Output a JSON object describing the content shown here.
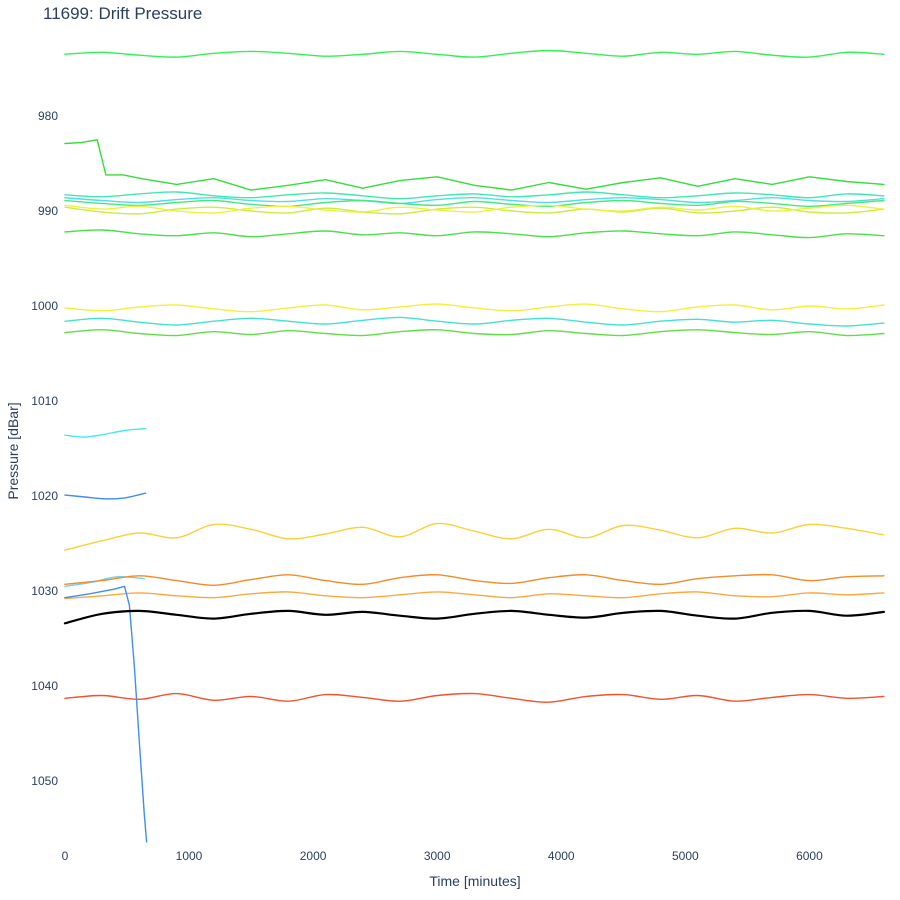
{
  "header": {
    "title": "11699: Drift Pressure"
  },
  "chart_data": {
    "type": "line",
    "title": "11699: Drift Pressure",
    "xlabel": "Time [minutes]",
    "ylabel": "Pressure [dBar]",
    "x_ticks": [
      0,
      1000,
      2000,
      3000,
      4000,
      5000,
      6000
    ],
    "y_ticks": [
      980,
      990,
      1000,
      1010,
      1020,
      1030,
      1040,
      1050
    ],
    "xlim": [
      -80,
      6730
    ],
    "ylim": [
      972,
      1058
    ],
    "y_axis_inverted": true,
    "grid": false,
    "legend_position": "none",
    "plot_bgcolor": "#ffffff",
    "text_color": "#2a3f5f",
    "default_x": [
      0,
      300,
      600,
      900,
      1200,
      1500,
      1800,
      2100,
      2400,
      2700,
      3000,
      3300,
      3600,
      3900,
      4200,
      4500,
      4800,
      5100,
      5400,
      5700,
      6000,
      6300,
      6600
    ],
    "series": [
      {
        "name": "series-green-973",
        "color": "#33f055",
        "width": 1.4,
        "smooth": true,
        "y": [
          973.5,
          973.3,
          973.6,
          973.8,
          973.4,
          973.2,
          973.4,
          973.7,
          973.5,
          973.2,
          973.5,
          973.8,
          973.4,
          973.1,
          973.4,
          973.7,
          973.3,
          973.5,
          973.2,
          973.6,
          973.8,
          973.3,
          973.5
        ]
      },
      {
        "name": "series-green-jump-983-987",
        "color": "#34df3b",
        "width": 1.4,
        "smooth": false,
        "x": [
          0,
          130,
          260,
          330,
          470,
          620,
          900,
          1200,
          1500,
          1800,
          2100,
          2400,
          2700,
          3000,
          3300,
          3600,
          3900,
          4200,
          4500,
          4800,
          5100,
          5400,
          5700,
          6000,
          6300,
          6600
        ],
        "y": [
          982.9,
          982.8,
          982.5,
          986.2,
          986.2,
          986.6,
          987.2,
          986.6,
          987.8,
          987.3,
          986.7,
          987.6,
          986.8,
          986.4,
          987.3,
          987.8,
          987.0,
          987.7,
          987.0,
          986.5,
          987.4,
          986.6,
          987.2,
          986.4,
          986.9,
          987.2
        ]
      },
      {
        "name": "series-teal-988",
        "color": "#3fe8b0",
        "width": 1.4,
        "smooth": true,
        "y": [
          988.3,
          988.5,
          988.2,
          988.0,
          988.4,
          988.6,
          988.3,
          988.1,
          988.4,
          988.7,
          988.4,
          988.2,
          988.5,
          988.3,
          988.0,
          988.3,
          988.6,
          988.4,
          988.1,
          988.3,
          988.6,
          988.2,
          988.4
        ]
      },
      {
        "name": "series-cyan-989",
        "color": "#52dde6",
        "width": 1.4,
        "smooth": true,
        "y": [
          988.6,
          988.9,
          989.1,
          988.8,
          988.6,
          988.9,
          989.0,
          988.7,
          988.9,
          989.2,
          988.8,
          988.6,
          988.9,
          989.1,
          988.8,
          988.6,
          988.8,
          989.1,
          988.9,
          988.6,
          988.9,
          989.0,
          988.7
        ]
      },
      {
        "name": "series-springgreen-989",
        "color": "#47e87e",
        "width": 1.4,
        "smooth": true,
        "y": [
          988.9,
          989.2,
          989.4,
          989.1,
          988.9,
          989.3,
          989.5,
          989.1,
          988.9,
          989.2,
          989.4,
          989.0,
          989.3,
          989.5,
          989.1,
          988.9,
          989.2,
          989.4,
          989.0,
          989.2,
          989.5,
          989.2,
          988.9
        ]
      },
      {
        "name": "series-yellowgreen-990",
        "color": "#c8ee3f",
        "width": 1.4,
        "smooth": true,
        "y": [
          989.6,
          990.1,
          990.3,
          989.8,
          989.6,
          990.0,
          990.2,
          989.7,
          990.1,
          990.3,
          989.8,
          989.6,
          990.0,
          990.2,
          989.8,
          990.1,
          989.7,
          990.2,
          990.0,
          989.6,
          990.1,
          990.2,
          989.8
        ]
      },
      {
        "name": "series-yellow-990",
        "color": "#eff13b",
        "width": 1.4,
        "smooth": true,
        "y": [
          989.4,
          989.8,
          989.5,
          990.0,
          990.2,
          989.7,
          989.5,
          989.9,
          990.1,
          989.6,
          989.9,
          990.1,
          989.6,
          989.4,
          989.8,
          990.0,
          989.6,
          989.9,
          989.5,
          990.0,
          989.7,
          989.4,
          989.8
        ]
      },
      {
        "name": "series-green-992",
        "color": "#49e149",
        "width": 1.4,
        "smooth": true,
        "y": [
          992.2,
          992.0,
          992.4,
          992.6,
          992.3,
          992.7,
          992.4,
          992.1,
          992.5,
          992.3,
          992.6,
          992.2,
          992.4,
          992.7,
          992.3,
          992.1,
          992.4,
          992.6,
          992.2,
          992.5,
          992.8,
          992.4,
          992.6
        ]
      },
      {
        "name": "series-yellow-1000",
        "color": "#f6ef39",
        "width": 1.4,
        "smooth": true,
        "y": [
          1000.2,
          1000.5,
          1000.1,
          999.9,
          1000.3,
          1000.6,
          1000.2,
          999.9,
          1000.4,
          1000.1,
          999.8,
          1000.2,
          1000.5,
          1000.1,
          999.8,
          1000.3,
          1000.6,
          1000.1,
          999.9,
          1000.4,
          1000.0,
          1000.3,
          999.9
        ]
      },
      {
        "name": "series-turquoise-1001",
        "color": "#41e3cd",
        "width": 1.4,
        "smooth": true,
        "y": [
          1001.6,
          1001.3,
          1001.7,
          1002.0,
          1001.6,
          1001.3,
          1001.6,
          1001.9,
          1001.5,
          1001.2,
          1001.6,
          1001.9,
          1001.5,
          1001.3,
          1001.7,
          1002.0,
          1001.6,
          1001.4,
          1001.7,
          1001.5,
          1001.9,
          1002.1,
          1001.8
        ]
      },
      {
        "name": "series-lightgreen-1002",
        "color": "#5fdf47",
        "width": 1.4,
        "smooth": true,
        "y": [
          1002.8,
          1002.5,
          1002.9,
          1003.1,
          1002.7,
          1003.0,
          1002.6,
          1002.9,
          1003.1,
          1002.7,
          1002.5,
          1002.9,
          1003.0,
          1002.6,
          1002.9,
          1003.1,
          1002.7,
          1002.5,
          1002.8,
          1003.0,
          1002.7,
          1003.1,
          1002.9
        ]
      },
      {
        "name": "series-cyan-short-1013",
        "color": "#45e9f0",
        "width": 1.4,
        "smooth": true,
        "x": [
          0,
          160,
          320,
          480,
          650
        ],
        "y": [
          1013.6,
          1013.8,
          1013.5,
          1013.1,
          1012.9
        ]
      },
      {
        "name": "series-blue-short-1020",
        "color": "#3f8df5",
        "width": 1.4,
        "smooth": true,
        "x": [
          0,
          160,
          320,
          480,
          650
        ],
        "y": [
          1019.9,
          1020.1,
          1020.3,
          1020.2,
          1019.7
        ]
      },
      {
        "name": "series-gold-1023",
        "color": "#fcd039",
        "width": 1.4,
        "smooth": true,
        "y": [
          1025.7,
          1024.7,
          1023.9,
          1024.4,
          1023.0,
          1023.5,
          1024.5,
          1024.0,
          1023.3,
          1024.3,
          1022.9,
          1023.7,
          1024.5,
          1023.5,
          1024.4,
          1023.1,
          1023.6,
          1024.4,
          1023.4,
          1023.9,
          1023.0,
          1023.4,
          1024.1
        ]
      },
      {
        "name": "series-lightcyan-short-1029",
        "color": "#6fd0f2",
        "width": 1.4,
        "smooth": true,
        "x": [
          0,
          210,
          420,
          640
        ],
        "y": [
          1029.5,
          1029.1,
          1028.5,
          1028.7
        ]
      },
      {
        "name": "series-orange-1028",
        "color": "#f58b25",
        "width": 1.4,
        "smooth": true,
        "y": [
          1029.3,
          1028.9,
          1028.4,
          1028.9,
          1029.4,
          1028.8,
          1028.3,
          1028.9,
          1029.3,
          1028.6,
          1028.3,
          1028.9,
          1029.2,
          1028.6,
          1028.3,
          1028.9,
          1029.3,
          1028.7,
          1028.4,
          1028.3,
          1028.9,
          1028.5,
          1028.4
        ]
      },
      {
        "name": "series-lightorange-1030",
        "color": "#fba93e",
        "width": 1.4,
        "smooth": true,
        "y": [
          1030.8,
          1030.5,
          1030.2,
          1030.5,
          1030.7,
          1030.3,
          1030.1,
          1030.5,
          1030.7,
          1030.4,
          1030.1,
          1030.4,
          1030.7,
          1030.3,
          1030.5,
          1030.7,
          1030.3,
          1030.1,
          1030.5,
          1030.6,
          1030.2,
          1030.4,
          1030.2
        ]
      },
      {
        "name": "series-blue-plunge",
        "color": "#3f8df5",
        "width": 1.4,
        "smooth": false,
        "x": [
          0,
          200,
          400,
          480,
          520,
          560,
          600,
          640,
          658
        ],
        "y": [
          1030.7,
          1030.3,
          1029.8,
          1029.5,
          1031.5,
          1038.0,
          1046.0,
          1053.5,
          1056.4
        ]
      },
      {
        "name": "series-black-1032",
        "color": "#000000",
        "width": 2.2,
        "smooth": true,
        "y": [
          1033.4,
          1032.4,
          1032.1,
          1032.5,
          1032.9,
          1032.4,
          1032.1,
          1032.5,
          1032.2,
          1032.6,
          1032.9,
          1032.4,
          1032.1,
          1032.5,
          1032.8,
          1032.3,
          1032.1,
          1032.6,
          1032.9,
          1032.3,
          1032.1,
          1032.6,
          1032.2
        ]
      },
      {
        "name": "series-red-1041",
        "color": "#f4512c",
        "width": 1.4,
        "smooth": true,
        "y": [
          1041.3,
          1041.0,
          1041.4,
          1040.8,
          1041.5,
          1041.1,
          1041.6,
          1040.9,
          1041.2,
          1041.6,
          1041.0,
          1040.8,
          1041.3,
          1041.7,
          1041.1,
          1040.9,
          1041.4,
          1041.0,
          1041.6,
          1041.2,
          1040.9,
          1041.3,
          1041.1
        ]
      }
    ]
  }
}
